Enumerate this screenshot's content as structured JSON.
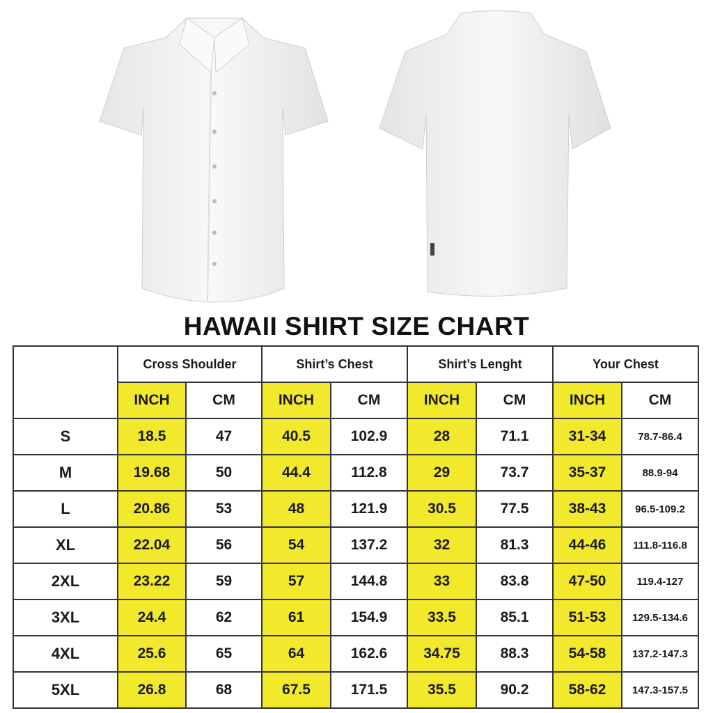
{
  "title": "HAWAII SHIRT SIZE CHART",
  "colors": {
    "highlight": "#f2e82c",
    "border": "#333333",
    "shirt": "#f4f4f4"
  },
  "images": [
    {
      "name": "shirt-front"
    },
    {
      "name": "shirt-back"
    }
  ],
  "groups": [
    "Cross Shoulder",
    "Shirt’s Chest",
    "Shirt’s Lenght",
    "Your Chest"
  ],
  "units": [
    "INCH",
    "CM"
  ],
  "rows": [
    {
      "size": "S",
      "values": [
        "18.5",
        "47",
        "40.5",
        "102.9",
        "28",
        "71.1",
        "31-34",
        "78.7-86.4"
      ]
    },
    {
      "size": "M",
      "values": [
        "19.68",
        "50",
        "44.4",
        "112.8",
        "29",
        "73.7",
        "35-37",
        "88.9-94"
      ]
    },
    {
      "size": "L",
      "values": [
        "20.86",
        "53",
        "48",
        "121.9",
        "30.5",
        "77.5",
        "38-43",
        "96.5-109.2"
      ]
    },
    {
      "size": "XL",
      "values": [
        "22.04",
        "56",
        "54",
        "137.2",
        "32",
        "81.3",
        "44-46",
        "111.8-116.8"
      ]
    },
    {
      "size": "2XL",
      "values": [
        "23.22",
        "59",
        "57",
        "144.8",
        "33",
        "83.8",
        "47-50",
        "119.4-127"
      ]
    },
    {
      "size": "3XL",
      "values": [
        "24.4",
        "62",
        "61",
        "154.9",
        "33.5",
        "85.1",
        "51-53",
        "129.5-134.6"
      ]
    },
    {
      "size": "4XL",
      "values": [
        "25.6",
        "65",
        "64",
        "162.6",
        "34.75",
        "88.3",
        "54-58",
        "137.2-147.3"
      ]
    },
    {
      "size": "5XL",
      "values": [
        "26.8",
        "68",
        "67.5",
        "171.5",
        "35.5",
        "90.2",
        "58-62",
        "147.3-157.5"
      ]
    }
  ]
}
